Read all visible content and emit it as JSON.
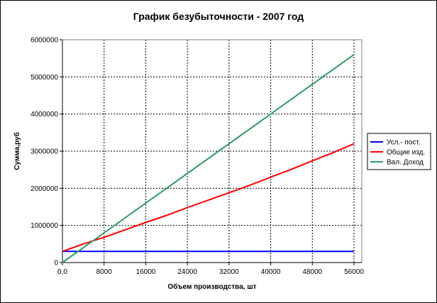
{
  "chart_data": {
    "type": "line",
    "title": "График безубыточности - 2007 год",
    "xlabel": "Объем производства, шт",
    "ylabel": "Сумма,руб",
    "xlim": [
      0,
      57500
    ],
    "ylim": [
      0,
      6000000
    ],
    "xticks": [
      0,
      8000,
      16000,
      24000,
      32000,
      40000,
      48000,
      56000
    ],
    "xtick_labels": [
      "0,0",
      "8000",
      "16000",
      "24000",
      "32000",
      "40000",
      "48000",
      "56000"
    ],
    "yticks": [
      0,
      1000000,
      2000000,
      3000000,
      4000000,
      5000000,
      6000000
    ],
    "ytick_labels": [
      "0",
      "1000000",
      "2000000",
      "3000000",
      "4000000",
      "5000000",
      "6000000"
    ],
    "grid": true,
    "legend_position": "right",
    "series": [
      {
        "name": "Усл.- пост.",
        "color": "#0000ff",
        "x": [
          0,
          56000
        ],
        "y": [
          300000,
          300000
        ]
      },
      {
        "name": "Общие изд.",
        "color": "#ff0000",
        "x": [
          0,
          4000,
          8000,
          12000,
          16000,
          20000,
          24000,
          28000,
          32000,
          36000,
          40000,
          44000,
          48000,
          52000,
          56000
        ],
        "y": [
          300000,
          500000,
          680000,
          880000,
          1080000,
          1270000,
          1480000,
          1680000,
          1880000,
          2080000,
          2300000,
          2510000,
          2740000,
          2960000,
          3200000
        ]
      },
      {
        "name": "Вал. Доход",
        "color": "#339966",
        "x": [
          0,
          56000
        ],
        "y": [
          0,
          5600000
        ]
      }
    ]
  }
}
